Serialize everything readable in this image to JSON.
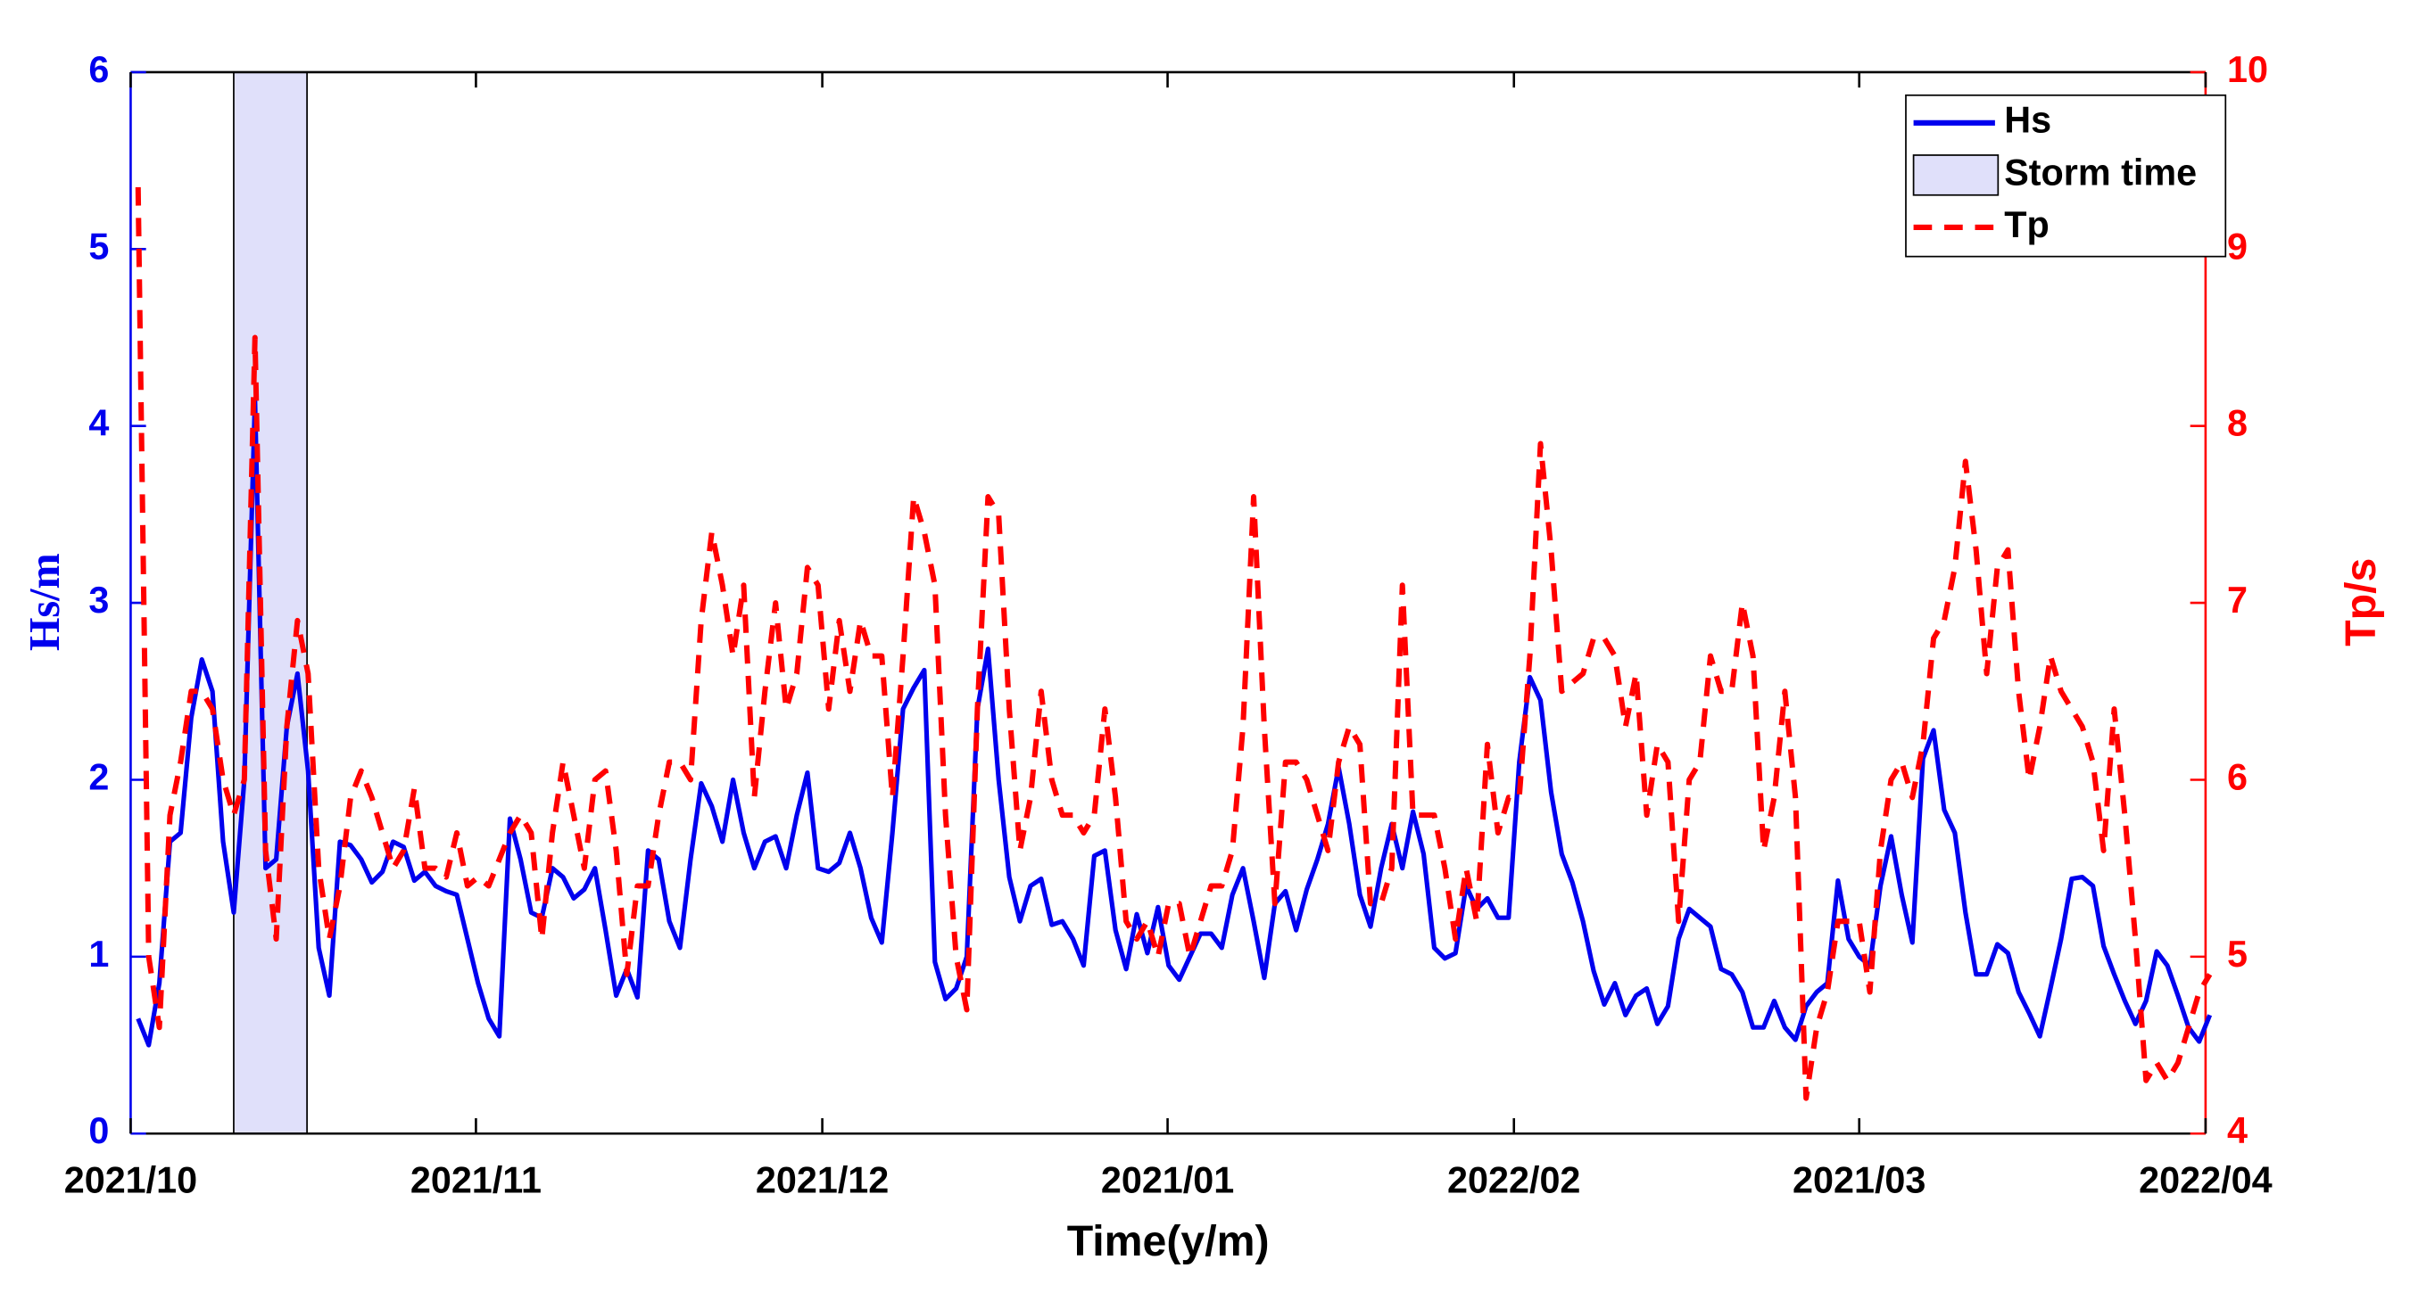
{
  "chart_data": {
    "type": "line",
    "x_label": "Time(y/m)",
    "y_label": "Hs/m",
    "y2_label": "Tp/s",
    "x": [
      0,
      1,
      2,
      3,
      4,
      5,
      6,
      7,
      8,
      9,
      10,
      11,
      12,
      13,
      14,
      15,
      16,
      17,
      18,
      19,
      20,
      21,
      22,
      23,
      24,
      25,
      26,
      27,
      28,
      29,
      30,
      31,
      32,
      33,
      34,
      35,
      36,
      37,
      38,
      39,
      40,
      41,
      42,
      43,
      44,
      45,
      46,
      47,
      48,
      49,
      50,
      51,
      52,
      53,
      54,
      55,
      56,
      57,
      58,
      59,
      60,
      61,
      62,
      63,
      64,
      65,
      66,
      67,
      68,
      69,
      70,
      71,
      72,
      73,
      74,
      75,
      76,
      77,
      78,
      79,
      80,
      81,
      82,
      83,
      84,
      85,
      86,
      87,
      88,
      89,
      90,
      91,
      92,
      93,
      94,
      95,
      96,
      97,
      98,
      99,
      100,
      101,
      102,
      103,
      104,
      105,
      106,
      107,
      108,
      109,
      110,
      111,
      112,
      113,
      114,
      115,
      116,
      117,
      118,
      119,
      120,
      121,
      122,
      123,
      124,
      125,
      126,
      127,
      128,
      129,
      130,
      131,
      132,
      133,
      134,
      135,
      136,
      137,
      138,
      139,
      140,
      141,
      142,
      143,
      144,
      145,
      146,
      147,
      148,
      149,
      150,
      151,
      152,
      153,
      154,
      155,
      156,
      157,
      158,
      159,
      160,
      161,
      162,
      163,
      164,
      165,
      166,
      167,
      168,
      169,
      170,
      171,
      172,
      173,
      174,
      175,
      176,
      177,
      178,
      179,
      180,
      181,
      182,
      183,
      184,
      185,
      186,
      187,
      188,
      189,
      190,
      191,
      192,
      193,
      194,
      195
    ],
    "series": [
      {
        "name": "Hs",
        "color": "#0000ee",
        "axis": "y",
        "dash": false,
        "values": [
          0.65,
          0.5,
          0.85,
          1.65,
          1.7,
          2.35,
          2.68,
          2.5,
          1.65,
          1.25,
          2.0,
          4.15,
          1.5,
          1.55,
          2.3,
          2.6,
          2.05,
          1.05,
          0.78,
          1.65,
          1.63,
          1.55,
          1.42,
          1.48,
          1.65,
          1.62,
          1.43,
          1.48,
          1.4,
          1.37,
          1.35,
          1.1,
          0.85,
          0.65,
          0.55,
          1.78,
          1.55,
          1.25,
          1.22,
          1.5,
          1.45,
          1.33,
          1.38,
          1.5,
          1.15,
          0.78,
          0.93,
          0.77,
          1.6,
          1.55,
          1.2,
          1.05,
          1.55,
          1.98,
          1.85,
          1.65,
          2.0,
          1.7,
          1.5,
          1.65,
          1.68,
          1.5,
          1.8,
          2.04,
          1.5,
          1.48,
          1.53,
          1.7,
          1.5,
          1.22,
          1.08,
          1.7,
          2.4,
          2.52,
          2.62,
          0.97,
          0.76,
          0.82,
          1.0,
          2.4,
          2.74,
          2.0,
          1.45,
          1.2,
          1.4,
          1.44,
          1.18,
          1.2,
          1.1,
          0.95,
          1.57,
          1.6,
          1.15,
          0.93,
          1.24,
          1.02,
          1.28,
          0.95,
          0.87,
          1.0,
          1.13,
          1.13,
          1.05,
          1.35,
          1.5,
          1.2,
          0.88,
          1.3,
          1.37,
          1.15,
          1.38,
          1.55,
          1.75,
          2.07,
          1.75,
          1.35,
          1.17,
          1.5,
          1.75,
          1.5,
          1.82,
          1.58,
          1.05,
          0.99,
          1.02,
          1.4,
          1.27,
          1.33,
          1.22,
          1.22,
          2.1,
          2.58,
          2.45,
          1.93,
          1.58,
          1.42,
          1.2,
          0.92,
          0.73,
          0.85,
          0.67,
          0.78,
          0.82,
          0.62,
          0.72,
          1.1,
          1.27,
          1.22,
          1.17,
          0.93,
          0.9,
          0.8,
          0.6,
          0.6,
          0.75,
          0.6,
          0.53,
          0.72,
          0.8,
          0.85,
          1.43,
          1.1,
          1.0,
          0.95,
          1.4,
          1.68,
          1.35,
          1.08,
          2.12,
          2.28,
          1.83,
          1.7,
          1.25,
          0.9,
          0.9,
          1.07,
          1.02,
          0.8,
          0.68,
          0.55,
          0.82,
          1.1,
          1.44,
          1.45,
          1.4,
          1.06,
          0.9,
          0.75,
          0.62,
          0.75,
          1.03,
          0.95,
          0.78,
          0.6,
          0.52,
          0.67
        ]
      },
      {
        "name": "Tp",
        "color": "#ff0000",
        "axis": "y2",
        "dash": true,
        "values": [
          9.35,
          5.0,
          4.6,
          5.8,
          6.1,
          6.5,
          6.5,
          6.4,
          6.0,
          5.8,
          6.0,
          8.5,
          5.6,
          5.1,
          6.3,
          6.9,
          6.6,
          5.5,
          5.1,
          5.4,
          5.9,
          6.05,
          5.9,
          5.7,
          5.5,
          5.6,
          5.95,
          5.5,
          5.5,
          5.45,
          5.7,
          5.4,
          5.45,
          5.4,
          5.55,
          5.7,
          5.8,
          5.7,
          5.1,
          5.7,
          6.1,
          5.8,
          5.5,
          6.0,
          6.05,
          5.6,
          4.9,
          5.4,
          5.4,
          5.8,
          6.1,
          6.1,
          6.0,
          6.9,
          7.4,
          7.1,
          6.7,
          7.1,
          5.9,
          6.5,
          7.0,
          6.4,
          6.6,
          7.2,
          7.1,
          6.4,
          6.9,
          6.5,
          6.9,
          6.7,
          6.7,
          5.9,
          6.7,
          7.6,
          7.4,
          7.1,
          5.8,
          5.0,
          4.7,
          6.4,
          7.6,
          7.5,
          6.4,
          5.6,
          5.9,
          6.5,
          6.0,
          5.8,
          5.8,
          5.7,
          5.8,
          6.4,
          5.9,
          5.2,
          5.1,
          5.2,
          5.0,
          5.3,
          5.3,
          5.0,
          5.2,
          5.4,
          5.4,
          5.6,
          6.3,
          7.6,
          6.3,
          5.3,
          6.1,
          6.1,
          6.0,
          5.8,
          5.6,
          6.1,
          6.3,
          6.2,
          5.3,
          5.3,
          5.5,
          7.1,
          5.8,
          5.8,
          5.8,
          5.5,
          5.1,
          5.5,
          5.2,
          6.2,
          5.7,
          5.9,
          5.9,
          6.7,
          7.9,
          7.3,
          6.5,
          6.55,
          6.6,
          6.8,
          6.8,
          6.7,
          6.3,
          6.6,
          5.8,
          6.2,
          6.1,
          5.2,
          6.0,
          6.1,
          6.7,
          6.5,
          6.5,
          7.0,
          6.7,
          5.6,
          5.9,
          6.5,
          5.9,
          4.2,
          4.6,
          4.8,
          5.2,
          5.2,
          5.2,
          4.8,
          5.6,
          6.0,
          6.1,
          5.9,
          6.2,
          6.8,
          6.9,
          7.2,
          7.8,
          7.3,
          6.6,
          7.2,
          7.3,
          6.5,
          6.0,
          6.3,
          6.7,
          6.5,
          6.4,
          6.3,
          6.1,
          5.6,
          6.4,
          5.8,
          5.1,
          4.3,
          4.4,
          4.3,
          4.4,
          4.6,
          4.8,
          4.9
        ]
      }
    ],
    "shaded_regions": [
      {
        "name": "Storm time",
        "x": [
          9,
          15.9
        ],
        "color": "#e0e0fa"
      }
    ],
    "xlim": [
      -0.7,
      194.6
    ],
    "xticks": [
      {
        "value": -0.7,
        "label": "2021/10"
      },
      {
        "value": 31.8,
        "label": "2021/11"
      },
      {
        "value": 64.4,
        "label": "2021/12"
      },
      {
        "value": 96.9,
        "label": "2021/01"
      },
      {
        "value": 129.5,
        "label": "2022/02"
      },
      {
        "value": 162,
        "label": "2021/03"
      },
      {
        "value": 194.6,
        "label": "2022/04"
      }
    ],
    "ylim": [
      0,
      6
    ],
    "yticks": [
      0,
      1,
      2,
      3,
      4,
      5,
      6
    ],
    "y_color": "#0000ee",
    "y2lim": [
      4,
      10
    ],
    "y2ticks": [
      4,
      5,
      6,
      7,
      8,
      9,
      10
    ],
    "y2_color": "#ff0000",
    "grid": false,
    "legend": "top-right"
  }
}
